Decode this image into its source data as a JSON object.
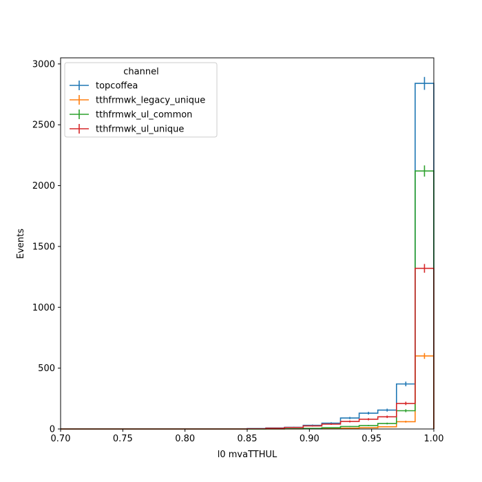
{
  "chart_data": {
    "type": "histogram",
    "xlabel": "l0 mvaTTHUL",
    "ylabel": "Events",
    "xlim": [
      0.7,
      1.0
    ],
    "ylim": [
      0,
      3050
    ],
    "x_ticks": [
      0.7,
      0.75,
      0.8,
      0.85,
      0.9,
      0.95,
      1.0
    ],
    "x_tick_labels": [
      "0.70",
      "0.75",
      "0.80",
      "0.85",
      "0.90",
      "0.95",
      "1.00"
    ],
    "y_ticks": [
      0,
      500,
      1000,
      1500,
      2000,
      2500,
      3000
    ],
    "y_tick_labels": [
      "0",
      "500",
      "1000",
      "1500",
      "2000",
      "2500",
      "3000"
    ],
    "bin_edges": [
      0.7,
      0.715,
      0.73,
      0.745,
      0.76,
      0.775,
      0.79,
      0.805,
      0.82,
      0.835,
      0.85,
      0.865,
      0.88,
      0.895,
      0.91,
      0.925,
      0.94,
      0.955,
      0.97,
      0.985,
      1.0
    ],
    "legend_title": "channel",
    "legend_position": "upper-left",
    "grid": false,
    "series": [
      {
        "name": "topcoffea",
        "color": "#1f77b4",
        "values": [
          0,
          0,
          0,
          0,
          0,
          0,
          0,
          0,
          0,
          0,
          3,
          8,
          14,
          30,
          48,
          90,
          130,
          155,
          370,
          2840
        ],
        "errors": [
          0,
          0,
          0,
          0,
          0,
          0,
          0,
          0,
          0,
          0,
          2,
          3,
          4,
          6,
          7,
          9,
          11,
          12,
          19,
          53
        ]
      },
      {
        "name": "tthfrmwk_legacy_unique",
        "color": "#ff7f0e",
        "values": [
          0,
          0,
          0,
          0,
          0,
          0,
          0,
          0,
          0,
          0,
          0,
          0,
          1,
          2,
          4,
          6,
          10,
          18,
          60,
          600
        ],
        "errors": [
          0,
          0,
          0,
          0,
          0,
          0,
          0,
          0,
          0,
          0,
          0,
          0,
          1,
          1,
          2,
          2,
          3,
          4,
          8,
          24
        ]
      },
      {
        "name": "tthfrmwk_ul_common",
        "color": "#2ca02c",
        "values": [
          0,
          0,
          0,
          0,
          0,
          0,
          0,
          0,
          0,
          0,
          0,
          1,
          2,
          5,
          10,
          20,
          28,
          45,
          150,
          2120
        ],
        "errors": [
          0,
          0,
          0,
          0,
          0,
          0,
          0,
          0,
          0,
          0,
          0,
          1,
          1,
          2,
          3,
          4,
          5,
          7,
          12,
          46
        ]
      },
      {
        "name": "tthfrmwk_ul_unique",
        "color": "#d62728",
        "values": [
          0,
          0,
          0,
          0,
          0,
          0,
          0,
          0,
          0,
          0,
          2,
          6,
          12,
          25,
          40,
          62,
          80,
          100,
          210,
          1320
        ],
        "errors": [
          0,
          0,
          0,
          0,
          0,
          0,
          0,
          0,
          0,
          0,
          1,
          2,
          3,
          5,
          6,
          8,
          9,
          10,
          14,
          36
        ]
      }
    ]
  }
}
